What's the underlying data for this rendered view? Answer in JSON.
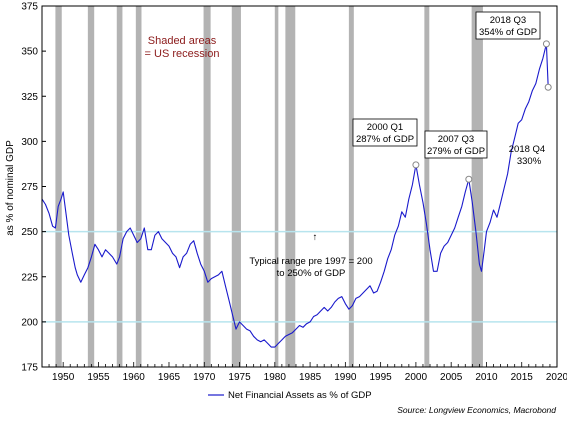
{
  "chart_data": {
    "type": "line",
    "ylabel": "as % of nominal GDP",
    "xlim": [
      1947,
      2020
    ],
    "ylim": [
      175,
      375
    ],
    "yticks": [
      175,
      200,
      225,
      250,
      275,
      300,
      325,
      350,
      375
    ],
    "xticks": [
      1950,
      1955,
      1960,
      1965,
      1970,
      1975,
      1980,
      1985,
      1990,
      1995,
      2000,
      2005,
      2010,
      2015,
      2020
    ],
    "grid": false,
    "reference_lines": [
      200,
      250
    ],
    "colors": {
      "line": "#1a1acc",
      "recession": "#b3b3b3",
      "reference": "#b7e4ee",
      "shaded_text": "#8b1a1a",
      "marker": "#888888"
    },
    "recessions": [
      [
        1948.9,
        1949.8
      ],
      [
        1953.5,
        1954.4
      ],
      [
        1957.6,
        1958.4
      ],
      [
        1960.3,
        1961.1
      ],
      [
        1969.9,
        1970.9
      ],
      [
        1973.9,
        1975.2
      ],
      [
        1980.0,
        1980.5
      ],
      [
        1981.5,
        1982.9
      ],
      [
        1990.5,
        1991.2
      ],
      [
        2001.2,
        2001.9
      ],
      [
        2007.9,
        2009.5
      ]
    ],
    "series": [
      {
        "name": "Net Financial Assets as % of GDP",
        "points": [
          [
            1947.0,
            268
          ],
          [
            1947.5,
            265
          ],
          [
            1948.0,
            260
          ],
          [
            1948.5,
            253
          ],
          [
            1948.9,
            252
          ],
          [
            1949.3,
            264
          ],
          [
            1949.7,
            268
          ],
          [
            1950.0,
            272
          ],
          [
            1950.4,
            260
          ],
          [
            1950.8,
            248
          ],
          [
            1951.3,
            238
          ],
          [
            1951.7,
            230
          ],
          [
            1952.0,
            226
          ],
          [
            1952.5,
            222
          ],
          [
            1953.0,
            226
          ],
          [
            1953.5,
            230
          ],
          [
            1954.0,
            236
          ],
          [
            1954.5,
            243
          ],
          [
            1955.0,
            240
          ],
          [
            1955.5,
            236
          ],
          [
            1956.0,
            240
          ],
          [
            1956.5,
            238
          ],
          [
            1957.0,
            236
          ],
          [
            1957.6,
            232
          ],
          [
            1958.0,
            236
          ],
          [
            1958.5,
            246
          ],
          [
            1959.0,
            250
          ],
          [
            1959.5,
            252
          ],
          [
            1960.0,
            248
          ],
          [
            1960.5,
            244
          ],
          [
            1961.0,
            246
          ],
          [
            1961.5,
            252
          ],
          [
            1962.0,
            240
          ],
          [
            1962.5,
            240
          ],
          [
            1963.0,
            248
          ],
          [
            1963.5,
            250
          ],
          [
            1964.0,
            246
          ],
          [
            1964.5,
            244
          ],
          [
            1965.0,
            242
          ],
          [
            1965.5,
            238
          ],
          [
            1966.0,
            236
          ],
          [
            1966.5,
            230
          ],
          [
            1967.0,
            236
          ],
          [
            1967.5,
            238
          ],
          [
            1968.0,
            243
          ],
          [
            1968.5,
            245
          ],
          [
            1969.0,
            238
          ],
          [
            1969.5,
            232
          ],
          [
            1970.0,
            228
          ],
          [
            1970.5,
            222
          ],
          [
            1971.0,
            224
          ],
          [
            1971.5,
            225
          ],
          [
            1972.0,
            226
          ],
          [
            1972.5,
            228
          ],
          [
            1973.0,
            220
          ],
          [
            1973.5,
            212
          ],
          [
            1974.0,
            204
          ],
          [
            1974.5,
            196
          ],
          [
            1975.0,
            200
          ],
          [
            1975.5,
            198
          ],
          [
            1976.0,
            196
          ],
          [
            1976.5,
            195
          ],
          [
            1977.0,
            192
          ],
          [
            1977.5,
            190
          ],
          [
            1978.0,
            189
          ],
          [
            1978.5,
            190
          ],
          [
            1979.0,
            188
          ],
          [
            1979.5,
            186
          ],
          [
            1980.0,
            186
          ],
          [
            1980.5,
            188
          ],
          [
            1981.0,
            190
          ],
          [
            1981.5,
            192
          ],
          [
            1982.0,
            193
          ],
          [
            1982.5,
            194
          ],
          [
            1983.0,
            196
          ],
          [
            1983.5,
            198
          ],
          [
            1984.0,
            197
          ],
          [
            1984.5,
            199
          ],
          [
            1985.0,
            200
          ],
          [
            1985.5,
            203
          ],
          [
            1986.0,
            204
          ],
          [
            1986.5,
            206
          ],
          [
            1987.0,
            208
          ],
          [
            1987.5,
            206
          ],
          [
            1988.0,
            208
          ],
          [
            1988.5,
            211
          ],
          [
            1989.0,
            213
          ],
          [
            1989.5,
            214
          ],
          [
            1990.0,
            210
          ],
          [
            1990.5,
            207
          ],
          [
            1991.0,
            209
          ],
          [
            1991.5,
            213
          ],
          [
            1992.0,
            214
          ],
          [
            1992.5,
            216
          ],
          [
            1993.0,
            218
          ],
          [
            1993.5,
            220
          ],
          [
            1994.0,
            216
          ],
          [
            1994.5,
            217
          ],
          [
            1995.0,
            222
          ],
          [
            1995.5,
            228
          ],
          [
            1996.0,
            235
          ],
          [
            1996.5,
            240
          ],
          [
            1997.0,
            248
          ],
          [
            1997.5,
            253
          ],
          [
            1998.0,
            261
          ],
          [
            1998.5,
            258
          ],
          [
            1999.0,
            268
          ],
          [
            1999.5,
            276
          ],
          [
            2000.0,
            287
          ],
          [
            2000.5,
            276
          ],
          [
            2001.0,
            266
          ],
          [
            2001.5,
            254
          ],
          [
            2002.0,
            240
          ],
          [
            2002.5,
            228
          ],
          [
            2003.0,
            228
          ],
          [
            2003.5,
            238
          ],
          [
            2004.0,
            242
          ],
          [
            2004.5,
            244
          ],
          [
            2005.0,
            248
          ],
          [
            2005.5,
            252
          ],
          [
            2006.0,
            258
          ],
          [
            2006.5,
            264
          ],
          [
            2007.0,
            272
          ],
          [
            2007.5,
            279
          ],
          [
            2008.0,
            266
          ],
          [
            2008.5,
            250
          ],
          [
            2009.0,
            232
          ],
          [
            2009.3,
            228
          ],
          [
            2009.7,
            240
          ],
          [
            2010.0,
            250
          ],
          [
            2010.5,
            255
          ],
          [
            2011.0,
            262
          ],
          [
            2011.5,
            258
          ],
          [
            2012.0,
            266
          ],
          [
            2012.5,
            274
          ],
          [
            2013.0,
            282
          ],
          [
            2013.5,
            294
          ],
          [
            2014.0,
            302
          ],
          [
            2014.5,
            310
          ],
          [
            2015.0,
            312
          ],
          [
            2015.5,
            318
          ],
          [
            2016.0,
            322
          ],
          [
            2016.5,
            328
          ],
          [
            2017.0,
            332
          ],
          [
            2017.5,
            340
          ],
          [
            2018.0,
            346
          ],
          [
            2018.5,
            354
          ],
          [
            2018.75,
            330
          ]
        ]
      }
    ],
    "markers": [
      {
        "x": 2000.0,
        "y": 287
      },
      {
        "x": 2007.5,
        "y": 279
      },
      {
        "x": 2018.5,
        "y": 354
      },
      {
        "x": 2018.75,
        "y": 330
      }
    ],
    "annotations": {
      "shaded_1": "Shaded areas",
      "shaded_2": "= US recession",
      "q2000_1": "2000 Q1",
      "q2000_2": "287% of GDP",
      "q2007_1": "2007 Q3",
      "q2007_2": "279% of GDP",
      "q2018_1": "2018 Q3",
      "q2018_2": "354% of GDP",
      "q2018q4_1": "2018 Q4",
      "q2018q4_2": "330%",
      "range_1": "Typical range pre 1997 = 200",
      "range_2": "to 250% of GDP",
      "arrow": "↑"
    },
    "legend": {
      "label": "Net Financial Assets as % of GDP",
      "placement": "bottom"
    },
    "source": "Source: Longview Economics, Macrobond"
  }
}
